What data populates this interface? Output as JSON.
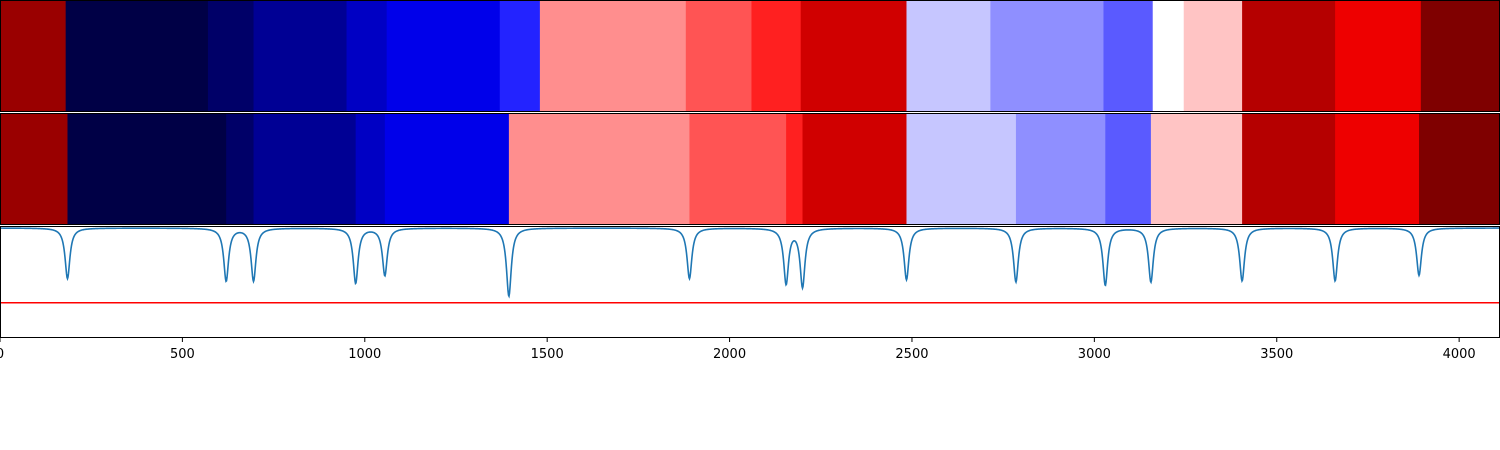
{
  "chart_data": {
    "type": "heatmap",
    "title": "",
    "xlabel": "",
    "ylabel": "",
    "xlim": [
      0,
      4112
    ],
    "x_ticks": [
      0,
      500,
      1000,
      1500,
      2000,
      2500,
      3000,
      3500,
      4000
    ],
    "x_tick_labels": [
      "0",
      "500",
      "1000",
      "1500",
      "2000",
      "2500",
      "3000",
      "3500",
      "4000"
    ],
    "grid": false,
    "legend": "none",
    "colormap": "seismic",
    "rows": [
      {
        "segments": [
          {
            "start": 0,
            "end": 180,
            "color": "#9a0000"
          },
          {
            "start": 180,
            "end": 570,
            "color": "#000046"
          },
          {
            "start": 570,
            "end": 695,
            "color": "#000068"
          },
          {
            "start": 695,
            "end": 950,
            "color": "#000094"
          },
          {
            "start": 950,
            "end": 1060,
            "color": "#0000c4"
          },
          {
            "start": 1060,
            "end": 1370,
            "color": "#0000ea"
          },
          {
            "start": 1370,
            "end": 1480,
            "color": "#2323ff"
          },
          {
            "start": 1480,
            "end": 1880,
            "color": "#ff8e8e"
          },
          {
            "start": 1880,
            "end": 2060,
            "color": "#ff5454"
          },
          {
            "start": 2060,
            "end": 2195,
            "color": "#ff2020"
          },
          {
            "start": 2195,
            "end": 2485,
            "color": "#d00000"
          },
          {
            "start": 2485,
            "end": 2715,
            "color": "#c6c6ff"
          },
          {
            "start": 2715,
            "end": 3025,
            "color": "#8f8fff"
          },
          {
            "start": 3025,
            "end": 3160,
            "color": "#5a5aff"
          },
          {
            "start": 3160,
            "end": 3245,
            "color": "#ffffff"
          },
          {
            "start": 3245,
            "end": 3405,
            "color": "#ffc4c4"
          },
          {
            "start": 3405,
            "end": 3660,
            "color": "#b50000"
          },
          {
            "start": 3660,
            "end": 3895,
            "color": "#ee0000"
          },
          {
            "start": 3895,
            "end": 4112,
            "color": "#7f0000"
          }
        ]
      },
      {
        "segments": [
          {
            "start": 0,
            "end": 185,
            "color": "#9a0000"
          },
          {
            "start": 185,
            "end": 620,
            "color": "#000046"
          },
          {
            "start": 620,
            "end": 695,
            "color": "#000068"
          },
          {
            "start": 695,
            "end": 975,
            "color": "#000094"
          },
          {
            "start": 975,
            "end": 1055,
            "color": "#0000c4"
          },
          {
            "start": 1055,
            "end": 1395,
            "color": "#0000ea"
          },
          {
            "start": 1395,
            "end": 1890,
            "color": "#ff8e8e"
          },
          {
            "start": 1890,
            "end": 2155,
            "color": "#ff5454"
          },
          {
            "start": 2155,
            "end": 2200,
            "color": "#ff2020"
          },
          {
            "start": 2200,
            "end": 2485,
            "color": "#d00000"
          },
          {
            "start": 2485,
            "end": 2785,
            "color": "#c6c6ff"
          },
          {
            "start": 2785,
            "end": 3030,
            "color": "#8f8fff"
          },
          {
            "start": 3030,
            "end": 3155,
            "color": "#5a5aff"
          },
          {
            "start": 3155,
            "end": 3405,
            "color": "#ffc4c4"
          },
          {
            "start": 3405,
            "end": 3660,
            "color": "#b50000"
          },
          {
            "start": 3660,
            "end": 3890,
            "color": "#ee0000"
          },
          {
            "start": 3890,
            "end": 4112,
            "color": "#7f0000"
          }
        ]
      }
    ],
    "signal": {
      "color": "#1f77b4",
      "baseline": 1.0,
      "ylim": [
        0,
        1.0
      ],
      "dips": [
        {
          "x": 185,
          "depth": 0.46
        },
        {
          "x": 620,
          "depth": 0.48
        },
        {
          "x": 695,
          "depth": 0.48
        },
        {
          "x": 975,
          "depth": 0.5
        },
        {
          "x": 1055,
          "depth": 0.43
        },
        {
          "x": 1395,
          "depth": 0.62
        },
        {
          "x": 1890,
          "depth": 0.46
        },
        {
          "x": 2155,
          "depth": 0.5
        },
        {
          "x": 2200,
          "depth": 0.53
        },
        {
          "x": 2485,
          "depth": 0.47
        },
        {
          "x": 2785,
          "depth": 0.49
        },
        {
          "x": 3030,
          "depth": 0.52
        },
        {
          "x": 3155,
          "depth": 0.49
        },
        {
          "x": 3405,
          "depth": 0.48
        },
        {
          "x": 3660,
          "depth": 0.48
        },
        {
          "x": 3890,
          "depth": 0.43
        }
      ]
    },
    "threshold": {
      "y": 0.32,
      "color": "#ff0000"
    }
  }
}
